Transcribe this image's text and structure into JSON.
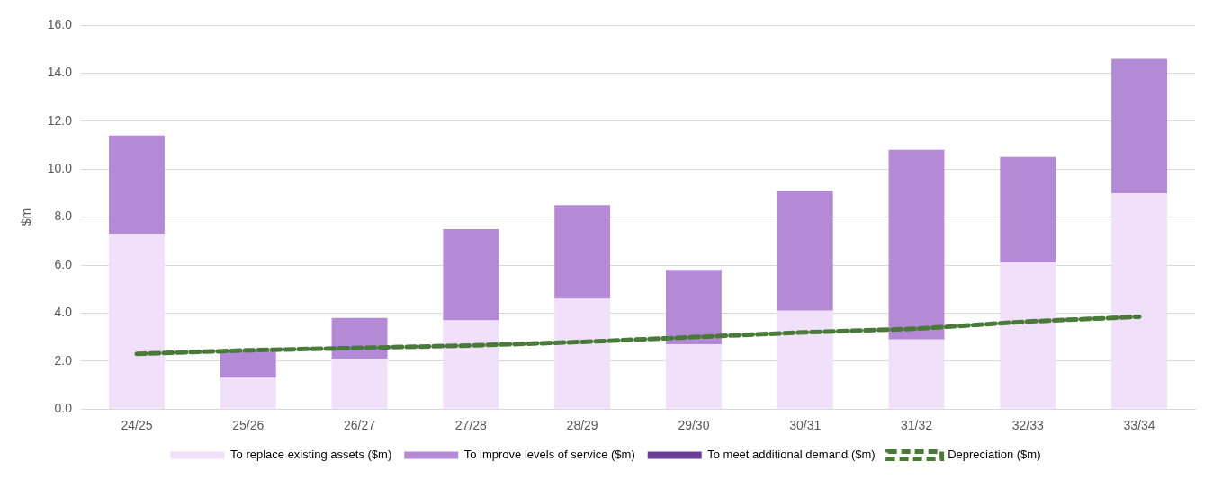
{
  "chart_data": {
    "type": "bar",
    "ylabel": "$m",
    "stacked": true,
    "grid": "y",
    "legend": "bottom",
    "categories": [
      "24/25",
      "25/26",
      "26/27",
      "27/28",
      "28/29",
      "29/30",
      "30/31",
      "31/32",
      "32/33",
      "33/34"
    ],
    "ylim": [
      0,
      16
    ],
    "yticks": [
      {
        "value": 0,
        "label": "0.0"
      },
      {
        "value": 2,
        "label": "2.0"
      },
      {
        "value": 4,
        "label": "4.0"
      },
      {
        "value": 6,
        "label": "6.0"
      },
      {
        "value": 8,
        "label": "8.0"
      },
      {
        "value": 10,
        "label": "10.0"
      },
      {
        "value": 12,
        "label": "12.0"
      },
      {
        "value": 14,
        "label": "14.0"
      },
      {
        "value": 16,
        "label": "16.0"
      }
    ],
    "series": [
      {
        "name": "To replace existing assets ($m)",
        "color": "#f0e0fa",
        "values": [
          7.3,
          1.3,
          2.1,
          3.7,
          4.6,
          2.7,
          4.1,
          2.9,
          6.1,
          9.0
        ]
      },
      {
        "name": "To improve levels of service ($m)",
        "color": "#b48ad6",
        "values": [
          4.1,
          1.1,
          1.7,
          3.8,
          3.9,
          3.1,
          5.0,
          7.9,
          4.4,
          5.6
        ]
      },
      {
        "name": "To meet additional demand ($m)",
        "color": "#6a3d9a",
        "values": [
          0,
          0,
          0,
          0,
          0,
          0,
          0,
          0,
          0,
          0
        ]
      },
      {
        "name": "Depreciation ($m)",
        "type": "line",
        "line_style": "dashed",
        "marker": "none",
        "color": "#4a7a3a",
        "values": [
          2.3,
          2.45,
          2.55,
          2.65,
          2.8,
          3.0,
          3.2,
          3.35,
          3.65,
          3.85
        ]
      }
    ]
  }
}
